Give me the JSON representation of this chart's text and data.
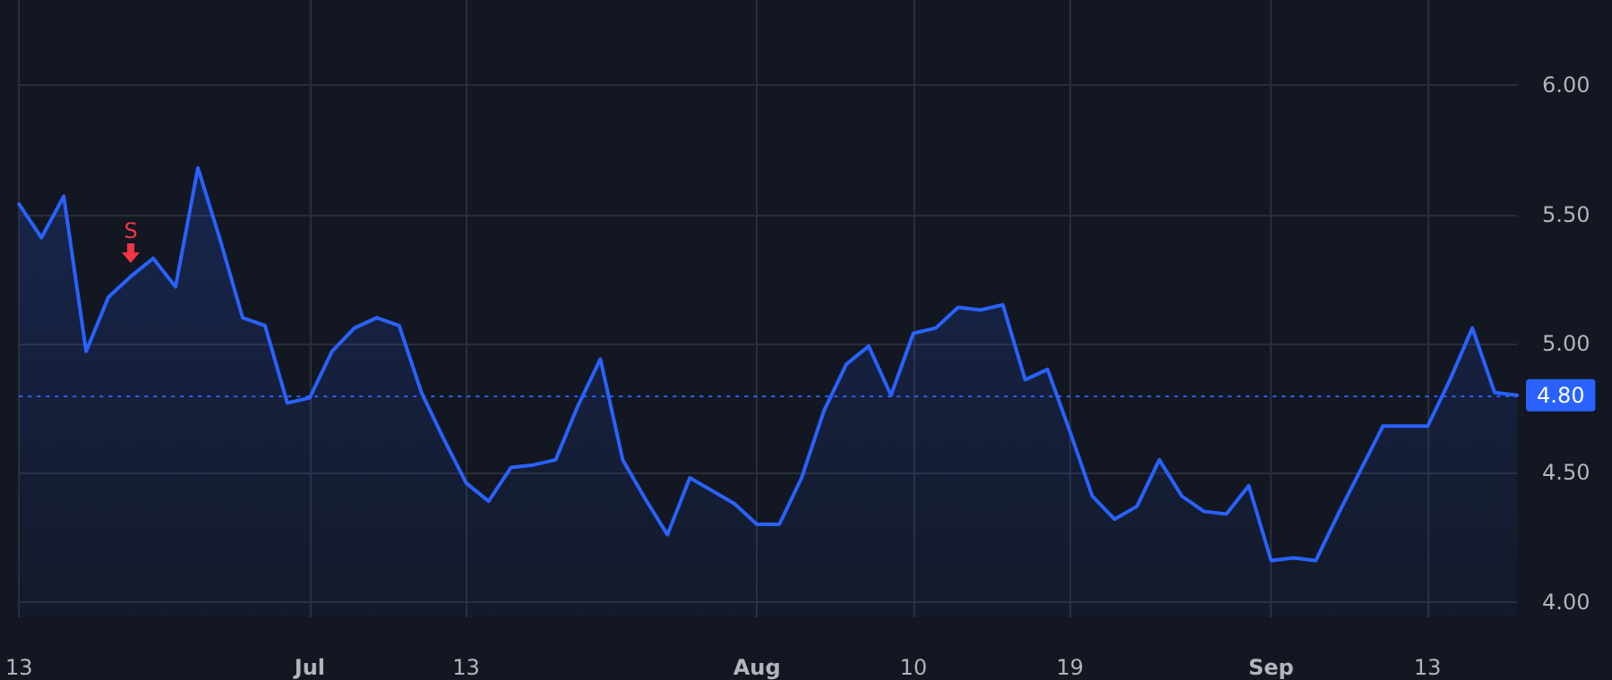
{
  "chart_data": {
    "type": "area",
    "categories": [
      "13",
      null,
      null,
      null,
      null,
      null,
      null,
      null,
      null,
      null,
      null,
      null,
      null,
      "Jul",
      null,
      null,
      null,
      null,
      null,
      null,
      "13",
      null,
      null,
      null,
      null,
      null,
      null,
      null,
      null,
      null,
      null,
      null,
      null,
      "Aug",
      null,
      null,
      null,
      null,
      null,
      null,
      "10",
      null,
      null,
      null,
      null,
      null,
      null,
      "19",
      null,
      null,
      null,
      null,
      null,
      null,
      null,
      null,
      "Sep",
      null,
      null,
      null,
      null,
      null,
      null,
      "13",
      null,
      null,
      null,
      null
    ],
    "series": [
      {
        "color": "#2962ff",
        "values": [
          5.54,
          5.41,
          5.57,
          4.97,
          5.18,
          5.26,
          5.33,
          5.22,
          5.68,
          5.4,
          5.1,
          5.07,
          4.77,
          4.79,
          4.97,
          5.06,
          5.1,
          5.07,
          4.81,
          4.63,
          4.46,
          4.39,
          4.52,
          4.53,
          4.55,
          4.76,
          4.94,
          4.55,
          4.4,
          4.26,
          4.48,
          4.43,
          4.38,
          4.3,
          4.3,
          4.48,
          4.74,
          4.92,
          4.99,
          4.8,
          5.04,
          5.06,
          5.14,
          5.13,
          5.15,
          4.86,
          4.9,
          4.66,
          4.41,
          4.32,
          4.37,
          4.55,
          4.41,
          4.35,
          4.34,
          4.45,
          4.16,
          4.17,
          4.16,
          4.34,
          4.51,
          4.68,
          4.68,
          4.68,
          4.86,
          5.06,
          4.81,
          4.8
        ]
      }
    ],
    "ylim": [
      3.94,
      6.33
    ],
    "yticks": [
      {
        "value": 4,
        "label": "4.00"
      },
      {
        "value": 4.5,
        "label": "4.50"
      },
      {
        "value": 5,
        "label": "5.00"
      },
      {
        "value": 5.5,
        "label": "5.50"
      },
      {
        "value": 6,
        "label": "6.00"
      }
    ],
    "grid": true,
    "ref_lines": [
      {
        "axis": "y",
        "value": 4.8,
        "label": "4.80",
        "color": "#2962ff",
        "line_style": "dotted"
      }
    ],
    "annotations": [
      {
        "text": "S",
        "y": 5.26
      }
    ]
  }
}
